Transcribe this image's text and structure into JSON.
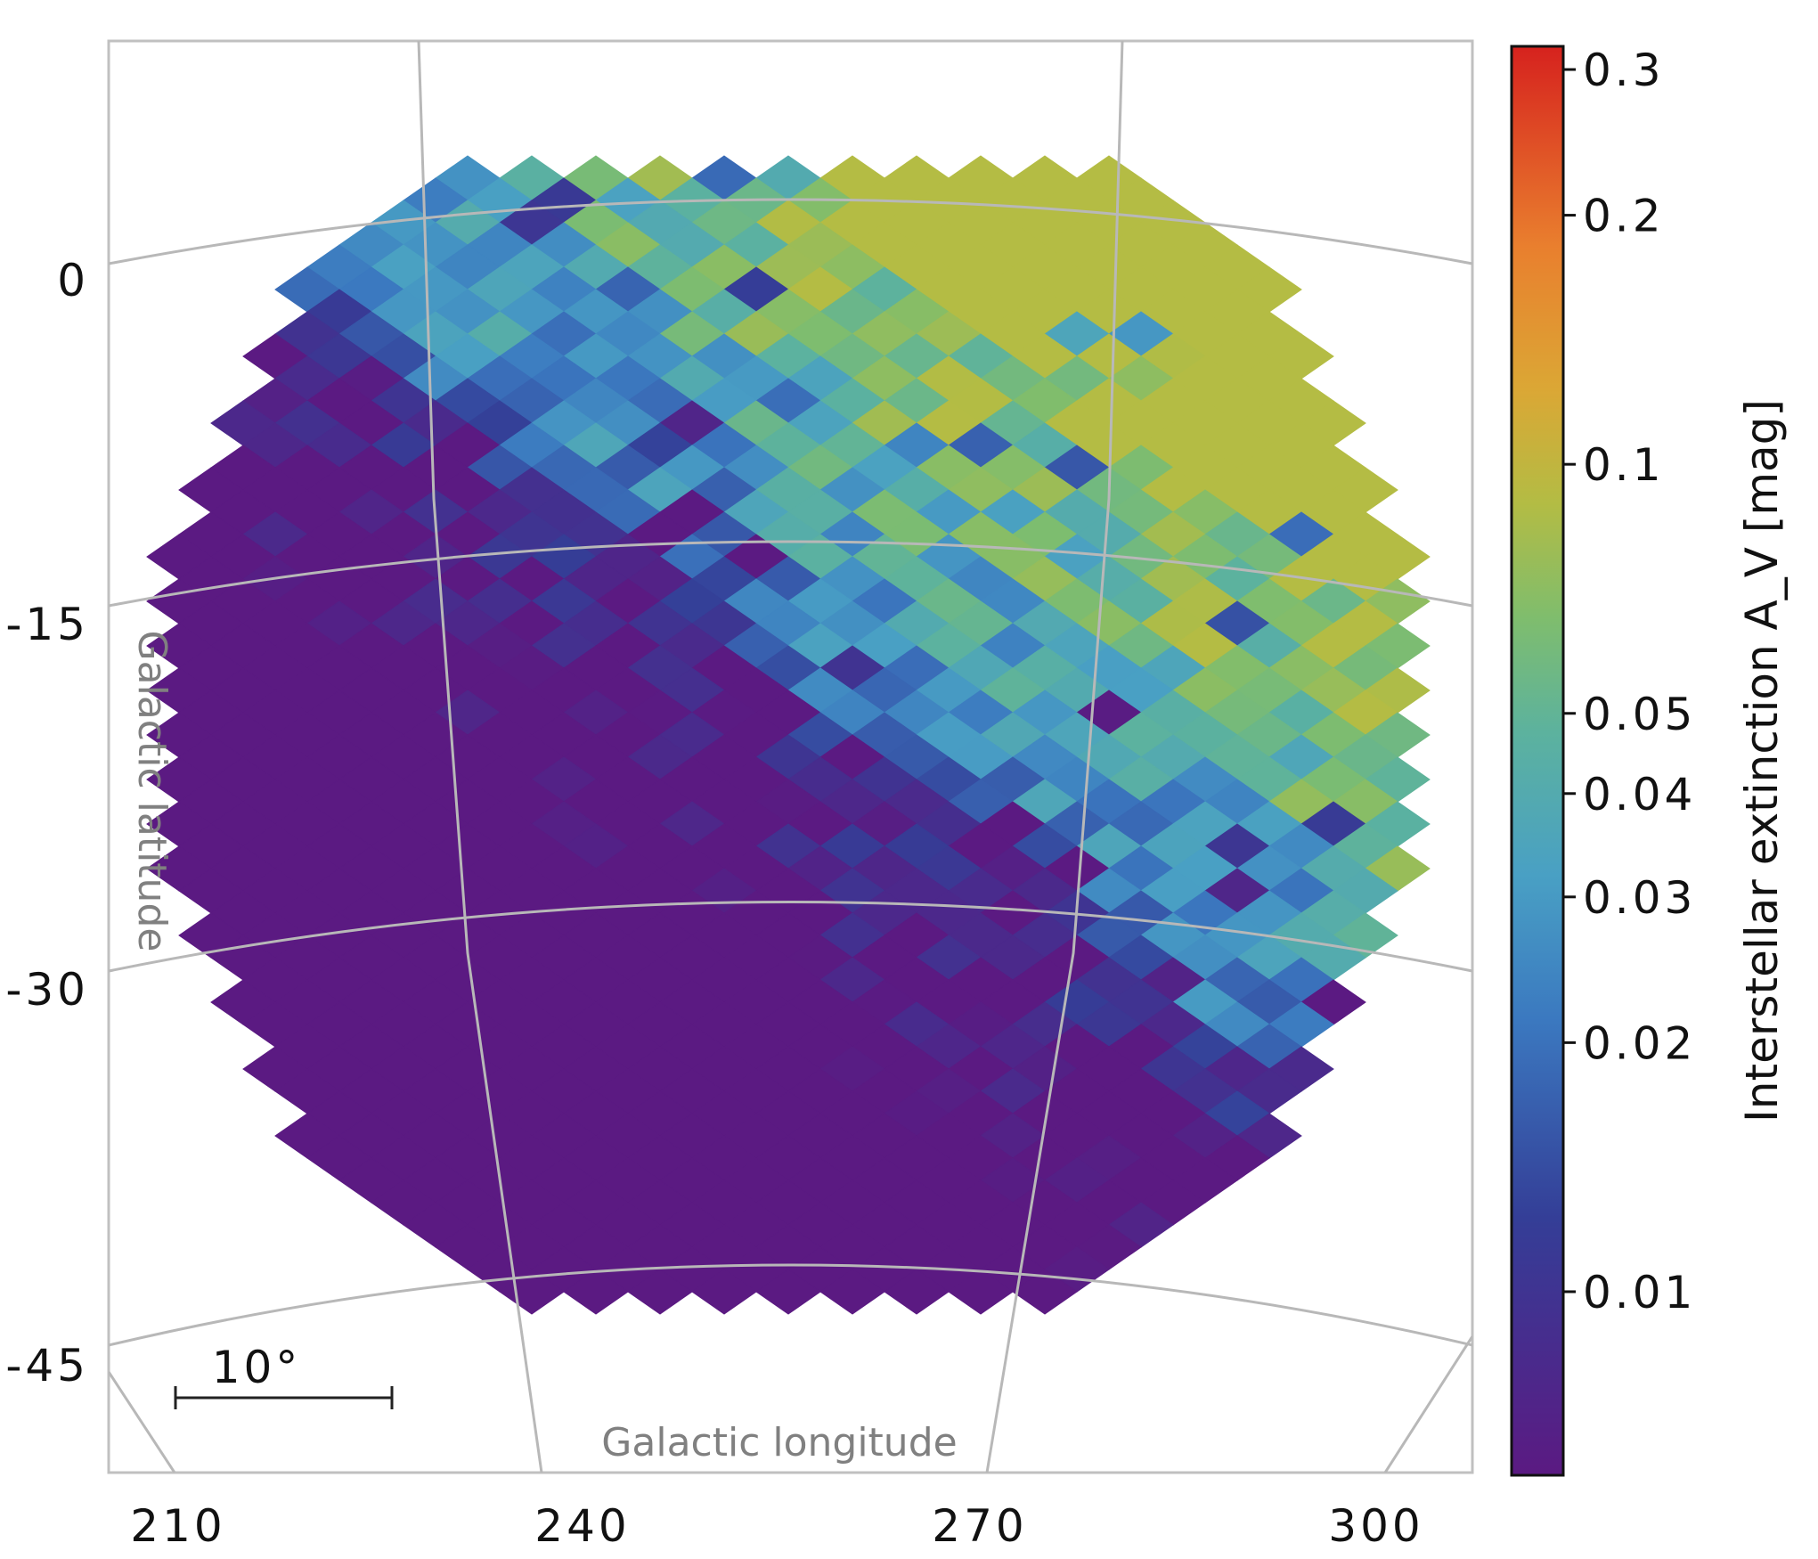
{
  "chart_data": {
    "type": "heatmap",
    "projection": "all-sky equal-area map in galactic coordinates",
    "xlabel": "Galactic longitude",
    "ylabel": "Galactic latitude",
    "x_ticks": [
      "210",
      "240",
      "270",
      "300"
    ],
    "y_ticks": [
      "0",
      "-15",
      "-30",
      "-45"
    ],
    "x_range_deg": [
      205,
      305
    ],
    "y_range_deg": [
      -50,
      10
    ],
    "grid": true,
    "scale_bar_label": "10°",
    "colorbar": {
      "label": "Interstellar extinction A_V [mag]",
      "scale": "log",
      "range": [
        0.006,
        0.32
      ],
      "ticks": [
        "0.3",
        "0.2",
        "0.1",
        "0.05",
        "0.04",
        "0.03",
        "0.02",
        "0.01"
      ],
      "colormap": [
        "#5b1a82",
        "#3a3d92",
        "#3d7fc4",
        "#49a8c0",
        "#5fb49c",
        "#7bbb73",
        "#aabd4a",
        "#d2ad38",
        "#e78f2f",
        "#e2642a",
        "#d42a22"
      ]
    },
    "region_description_values": {
      "dense_diagonal_band_AV": [
        0.02,
        0.07
      ],
      "lower_left_region_AV": [
        0.006,
        0.01
      ]
    }
  },
  "colors": {
    "grid": "#bdbdbd",
    "frame": "#c0c0c0",
    "axis_title": "#808080"
  }
}
